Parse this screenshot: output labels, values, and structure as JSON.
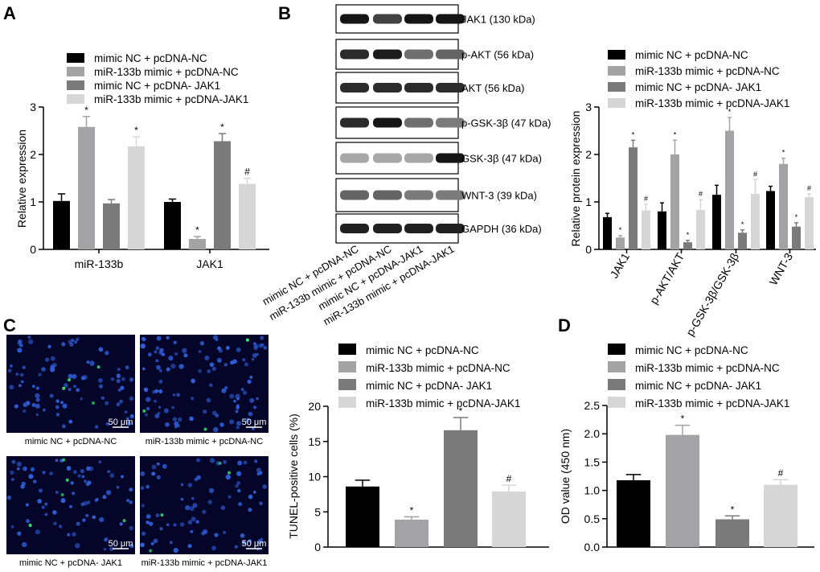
{
  "colors": {
    "mimic_nc_pcdna_nc": "#000000",
    "mir_mimic_pcdna_nc": "#a3a3a6",
    "mimic_nc_pcdna_jak1": "#7a7a7a",
    "mir_mimic_pcdna_jak1": "#d6d6d6",
    "micrograph_background": "#05052a",
    "nuclei": "#2f5fd8",
    "tunel_positive": "#3df07a"
  },
  "panel_labels": {
    "a": "A",
    "b": "B",
    "c": "C",
    "d": "D"
  },
  "legend_labels": {
    "a": [
      "mimic NC + pcDNA-NC",
      "miR-133b mimic + pcDNA-NC",
      "mimic NC + pcDNA- JAK1",
      "miR-133b mimic + pcDNA-JAK1"
    ],
    "b": [
      "mimic NC + pcDNA-NC",
      "miR-133b mimic + pcDNA-NC",
      "mimic NC + pcDNA- JAK1",
      "miR-133b mimic + pcDNA-JAK1"
    ],
    "c": [
      "mimic NC + pcDNA-NC",
      "miR-133b mimic + pcDNA-NC",
      "mimic NC + pcDNA- JAK1",
      "miR-133b mimic + pcDNA-JAK1"
    ],
    "d": [
      "mimic NC + pcDNA-NC",
      "miR-133b mimic + pcDNA-NC",
      "mimic NC + pcDNA- JAK1",
      "miR-133b mimic + pcDNA-JAK1"
    ]
  },
  "western_blot": {
    "bands": [
      {
        "label": "JAK1 (130 kDa)",
        "intensity": [
          0.95,
          0.75,
          0.95,
          0.95
        ]
      },
      {
        "label": "p-AKT (56 kDa)",
        "intensity": [
          0.85,
          0.92,
          0.55,
          0.6
        ]
      },
      {
        "label": "AKT (56 kDa)",
        "intensity": [
          0.85,
          0.85,
          0.85,
          0.85
        ]
      },
      {
        "label": "p-GSK-3β (47 kDa)",
        "intensity": [
          0.85,
          0.95,
          0.55,
          0.5
        ]
      },
      {
        "label": "GSK-3β (47 kDa)",
        "intensity": [
          0.3,
          0.3,
          0.3,
          0.95
        ]
      },
      {
        "label": "WNT-3 (39 kDa)",
        "intensity": [
          0.6,
          0.6,
          0.5,
          0.5
        ]
      },
      {
        "label": "GAPDH (36 kDa)",
        "intensity": [
          0.9,
          0.9,
          0.9,
          0.9
        ]
      }
    ],
    "lane_labels": [
      "mimic NC + pcDNA-NC",
      "miR-133b mimic + pcDNA-NC",
      "mimic NC + pcDNA-JAK1",
      "miR-133b mimic + pcDNA-JAK1"
    ]
  },
  "micrographs": {
    "captions": [
      "mimic NC + pcDNA-NC",
      "miR-133b mimic + pcDNA-NC",
      "mimic NC + pcDNA- JAK1",
      "miR-133b mimic + pcDNA-JAK1"
    ],
    "scale_bar": "50 μm",
    "nucleus_counts": [
      90,
      110,
      80,
      80
    ]
  },
  "chart_data": [
    {
      "panel": "A",
      "type": "bar",
      "categories": [
        "miR-133b",
        "JAK1"
      ],
      "ylabel": "Relative expression",
      "xlabel": "",
      "ylim": [
        0,
        3
      ],
      "yticks": [
        0,
        1,
        2,
        3
      ],
      "series": [
        {
          "name": "mimic NC + pcDNA-NC",
          "values": [
            1.02,
            1.0
          ],
          "errors": [
            0.15,
            0.06
          ],
          "marks": [
            "",
            ""
          ]
        },
        {
          "name": "miR-133b mimic + pcDNA-NC",
          "values": [
            2.58,
            0.22
          ],
          "errors": [
            0.22,
            0.05
          ],
          "marks": [
            "*",
            "*"
          ]
        },
        {
          "name": "mimic NC + pcDNA- JAK1",
          "values": [
            0.97,
            2.28
          ],
          "errors": [
            0.08,
            0.16
          ],
          "marks": [
            "",
            "*"
          ]
        },
        {
          "name": "miR-133b mimic + pcDNA-JAK1",
          "values": [
            2.17,
            1.38
          ],
          "errors": [
            0.2,
            0.12
          ],
          "marks": [
            "*",
            "#"
          ]
        }
      ],
      "legend": "top"
    },
    {
      "panel": "B",
      "type": "bar",
      "categories": [
        "JAK1",
        "p-AKT/AKT",
        "p-GSK-3β/GSK-3β",
        "WNT-3"
      ],
      "ylabel": "Relative protein expression",
      "xlabel": "",
      "ylim": [
        0,
        3
      ],
      "yticks": [
        0,
        1,
        2,
        3
      ],
      "series": [
        {
          "name": "mimic NC + pcDNA-NC",
          "values": [
            0.68,
            0.8,
            1.15,
            1.23
          ],
          "errors": [
            0.08,
            0.18,
            0.2,
            0.1
          ],
          "marks": [
            "",
            "",
            "",
            ""
          ]
        },
        {
          "name": "miR-133b mimic + pcDNA-NC",
          "values": [
            0.25,
            2.0,
            2.5,
            1.8
          ],
          "errors": [
            0.04,
            0.3,
            0.28,
            0.12
          ],
          "marks": [
            "*",
            "*",
            "*",
            "*"
          ]
        },
        {
          "name": "mimic NC + pcDNA- JAK1",
          "values": [
            2.15,
            0.15,
            0.35,
            0.48
          ],
          "errors": [
            0.15,
            0.04,
            0.06,
            0.08
          ],
          "marks": [
            "*",
            "*",
            "*",
            "*"
          ]
        },
        {
          "name": "miR-133b mimic + pcDNA-JAK1",
          "values": [
            0.82,
            0.83,
            1.17,
            1.1
          ],
          "errors": [
            0.13,
            0.22,
            0.3,
            0.07
          ],
          "marks": [
            "#",
            "#",
            "#",
            "#"
          ]
        }
      ],
      "legend": "top"
    },
    {
      "panel": "C",
      "type": "bar",
      "categories": [
        "mimic NC + pcDNA-NC",
        "miR-133b mimic + pcDNA-NC",
        "mimic NC + pcDNA- JAK1",
        "miR-133b mimic + pcDNA-JAK1"
      ],
      "ylabel": "TUNEL-positive cells (%)",
      "xlabel": "",
      "ylim": [
        0,
        20
      ],
      "yticks": [
        0,
        5,
        10,
        15,
        20
      ],
      "values": [
        8.6,
        3.9,
        16.6,
        7.9
      ],
      "errors": [
        0.9,
        0.4,
        1.8,
        0.9
      ],
      "marks": [
        "",
        "*",
        "*",
        "#"
      ],
      "legend": "top"
    },
    {
      "panel": "D",
      "type": "bar",
      "categories": [
        "mimic NC + pcDNA-NC",
        "miR-133b mimic + pcDNA-NC",
        "mimic NC + pcDNA- JAK1",
        "miR-133b mimic + pcDNA-JAK1"
      ],
      "ylabel": "OD value (450 nm)",
      "xlabel": "",
      "ylim": [
        0,
        2.5
      ],
      "yticks": [
        0.0,
        0.5,
        1.0,
        1.5,
        2.0,
        2.5
      ],
      "values": [
        1.18,
        1.98,
        0.49,
        1.1
      ],
      "errors": [
        0.1,
        0.17,
        0.06,
        0.09
      ],
      "marks": [
        "",
        "*",
        "*",
        "#"
      ],
      "legend": "top"
    }
  ]
}
